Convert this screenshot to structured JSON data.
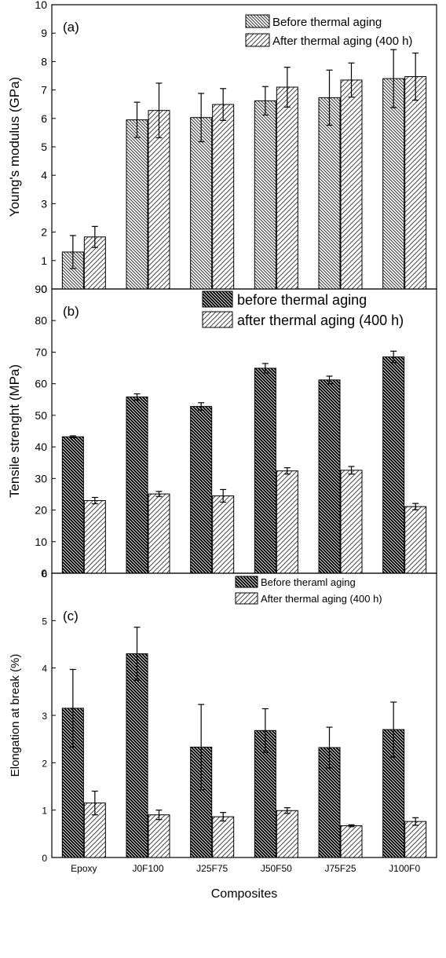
{
  "figure": {
    "shared_xlabel": "Composites",
    "categories": [
      "Epoxy",
      "J0F100",
      "J25F75",
      "J50F50",
      "J75F25",
      "J100F0"
    ]
  },
  "chart_data": [
    {
      "type": "bar",
      "panel_label": "(a)",
      "ylabel": "Young's modulus (GPa)",
      "ylim": [
        0,
        10
      ],
      "yticks": [
        0,
        1,
        2,
        3,
        4,
        5,
        6,
        7,
        8,
        9,
        10
      ],
      "categories": [
        "Epoxy",
        "J0F100",
        "J25F75",
        "J50F50",
        "J75F25",
        "J100F0"
      ],
      "legend_position": "top-right",
      "grid": false,
      "series": [
        {
          "name": "Before thermal aging",
          "pattern": "fine-back-hatch",
          "color": "#000000",
          "values": [
            1.3,
            5.95,
            6.03,
            6.62,
            6.73,
            7.4
          ],
          "errors": [
            0.58,
            0.62,
            0.85,
            0.5,
            0.97,
            1.02
          ]
        },
        {
          "name": "After thermal aging (400 h)",
          "pattern": "forward-hatch",
          "color": "#000000",
          "values": [
            1.83,
            6.28,
            6.49,
            7.1,
            7.35,
            7.47
          ],
          "errors": [
            0.37,
            0.96,
            0.56,
            0.7,
            0.6,
            0.83
          ]
        }
      ]
    },
    {
      "type": "bar",
      "panel_label": "(b)",
      "ylabel": "Tensile strenght (MPa)",
      "ylim": [
        0,
        90
      ],
      "yticks": [
        0,
        10,
        20,
        30,
        40,
        50,
        60,
        70,
        80,
        90
      ],
      "categories": [
        "Epoxy",
        "J0F100",
        "J25F75",
        "J50F50",
        "J75F25",
        "J100F0"
      ],
      "legend_position": "top-right",
      "grid": false,
      "series": [
        {
          "name": "before thermal aging",
          "pattern": "dense-back-hatch",
          "color": "#000000",
          "values": [
            43.2,
            55.8,
            52.8,
            64.9,
            61.2,
            68.5
          ],
          "errors": [
            0.3,
            1.0,
            1.2,
            1.5,
            1.2,
            1.8
          ]
        },
        {
          "name": "after thermal aging (400 h)",
          "pattern": "forward-hatch",
          "color": "#000000",
          "values": [
            23.0,
            25.1,
            24.5,
            32.4,
            32.6,
            21.1
          ],
          "errors": [
            1.0,
            0.8,
            2.0,
            1.0,
            1.2,
            1.0
          ]
        }
      ]
    },
    {
      "type": "bar",
      "panel_label": "(c)",
      "ylabel": "Elongation at break (%)",
      "xlabel": "Composites",
      "ylim": [
        0,
        6
      ],
      "yticks": [
        0,
        1,
        2,
        3,
        4,
        5,
        6
      ],
      "categories": [
        "Epoxy",
        "J0F100",
        "J25F75",
        "J50F50",
        "J75F25",
        "J100F0"
      ],
      "legend_position": "top-right",
      "grid": false,
      "series": [
        {
          "name": "Before theraml aging",
          "pattern": "dense-back-hatch",
          "color": "#000000",
          "values": [
            3.15,
            4.3,
            2.33,
            2.68,
            2.32,
            2.7
          ],
          "errors": [
            0.82,
            0.56,
            0.9,
            0.46,
            0.43,
            0.58
          ]
        },
        {
          "name": "After thermal aging (400 h)",
          "pattern": "forward-hatch",
          "color": "#000000",
          "values": [
            1.15,
            0.9,
            0.86,
            0.99,
            0.67,
            0.76
          ],
          "errors": [
            0.25,
            0.1,
            0.09,
            0.06,
            0.02,
            0.08
          ]
        }
      ]
    }
  ]
}
